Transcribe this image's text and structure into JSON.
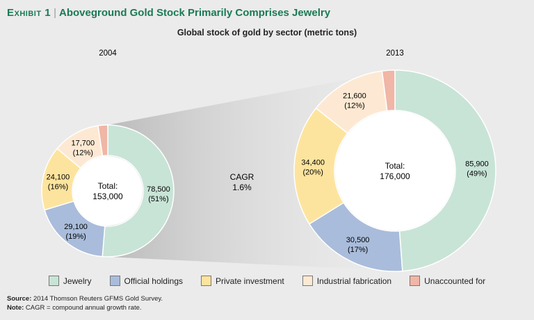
{
  "exhibit": {
    "label": "Exhibit 1",
    "title": "Aboveground Gold Stock Primarily Comprises Jewelry"
  },
  "subtitle": "Global stock of gold by sector (metric tons)",
  "cagr": {
    "label": "CAGR",
    "value": "1.6%"
  },
  "colors": {
    "Jewelry": "#c8e4d7",
    "Official holdings": "#a9bcdb",
    "Private investment": "#fde49e",
    "Industrial fabrication": "#fde9d3",
    "Unaccounted for": "#f0b6a6"
  },
  "chart_data": [
    {
      "type": "pie",
      "title": "2004",
      "total_label": "Total:",
      "total_value": "153,000",
      "slices": [
        {
          "name": "Jewelry",
          "value": 78500,
          "label": "78,500",
          "pct": "(51%)"
        },
        {
          "name": "Official holdings",
          "value": 29100,
          "label": "29,100",
          "pct": "(19%)"
        },
        {
          "name": "Private investment",
          "value": 24100,
          "label": "24,100",
          "pct": "(16%)"
        },
        {
          "name": "Industrial fabrication",
          "value": 17700,
          "label": "17,700",
          "pct": "(12%)"
        },
        {
          "name": "Unaccounted for",
          "value": 3600,
          "label": "",
          "pct": ""
        }
      ]
    },
    {
      "type": "pie",
      "title": "2013",
      "total_label": "Total:",
      "total_value": "176,000",
      "slices": [
        {
          "name": "Jewelry",
          "value": 85900,
          "label": "85,900",
          "pct": "(49%)"
        },
        {
          "name": "Official holdings",
          "value": 30500,
          "label": "30,500",
          "pct": "(17%)"
        },
        {
          "name": "Private investment",
          "value": 34400,
          "label": "34,400",
          "pct": "(20%)"
        },
        {
          "name": "Industrial fabrication",
          "value": 21600,
          "label": "21,600",
          "pct": "(12%)"
        },
        {
          "name": "Unaccounted for",
          "value": 3600,
          "label": "",
          "pct": ""
        }
      ]
    }
  ],
  "legend": [
    "Jewelry",
    "Official holdings",
    "Private investment",
    "Industrial fabrication",
    "Unaccounted for"
  ],
  "source": {
    "label": "Source:",
    "text": "2014 Thomson Reuters GFMS Gold Survey."
  },
  "note": {
    "label": "Note:",
    "text": "CAGR = compound annual growth rate."
  }
}
